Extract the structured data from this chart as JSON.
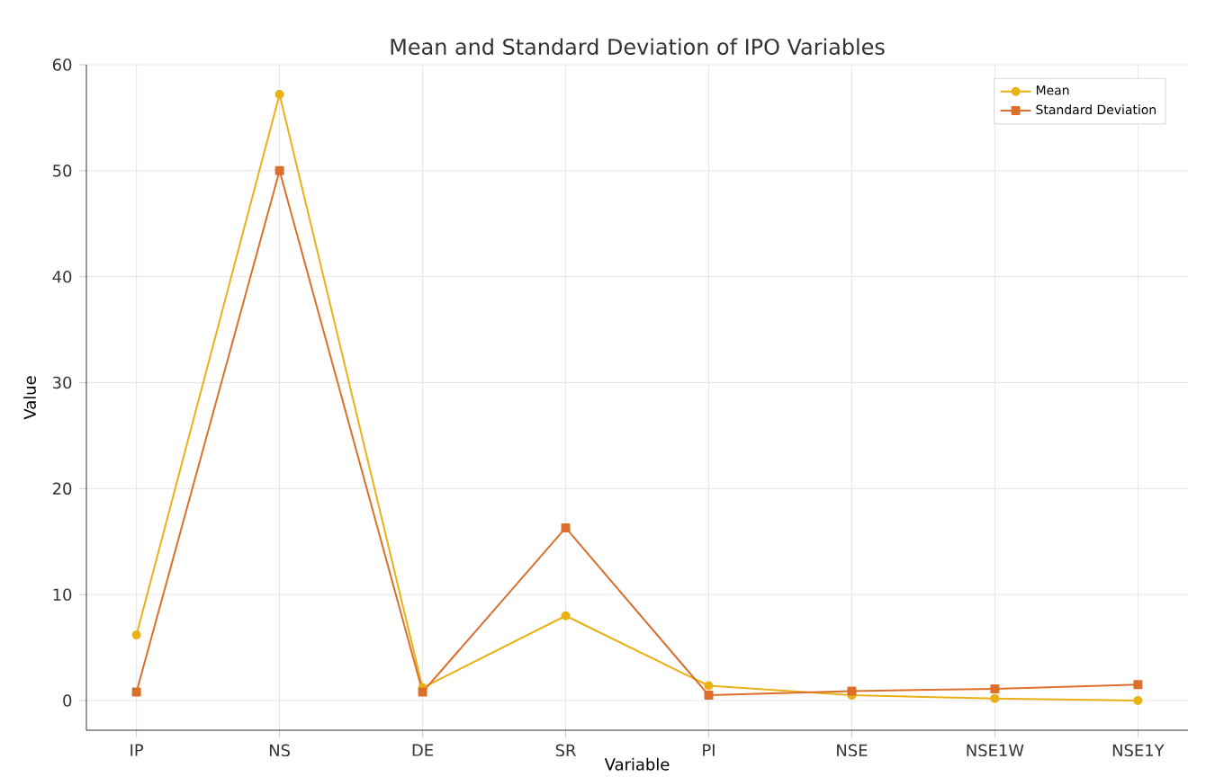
{
  "chart_data": {
    "type": "line",
    "title": "Mean and Standard Deviation of IPO Variables",
    "xlabel": "Variable",
    "ylabel": "Value",
    "categories": [
      "IP",
      "NS",
      "DE",
      "SR",
      "PI",
      "NSE",
      "NSE1W",
      "NSE1Y"
    ],
    "series": [
      {
        "name": "Mean",
        "color": "#e9b115",
        "marker": "circle",
        "values": [
          6.2,
          57.2,
          1.2,
          8.0,
          1.4,
          0.5,
          0.2,
          0.0
        ]
      },
      {
        "name": "Standard Deviation",
        "color": "#dc6f2c",
        "marker": "square",
        "values": [
          0.8,
          50.0,
          0.8,
          16.3,
          0.5,
          0.9,
          1.1,
          1.5
        ]
      }
    ],
    "ylim": [
      -2.8,
      60
    ],
    "yticks": [
      0,
      10,
      20,
      30,
      40,
      50,
      60
    ],
    "grid": true,
    "legend": "top right",
    "line_style": "solid"
  }
}
